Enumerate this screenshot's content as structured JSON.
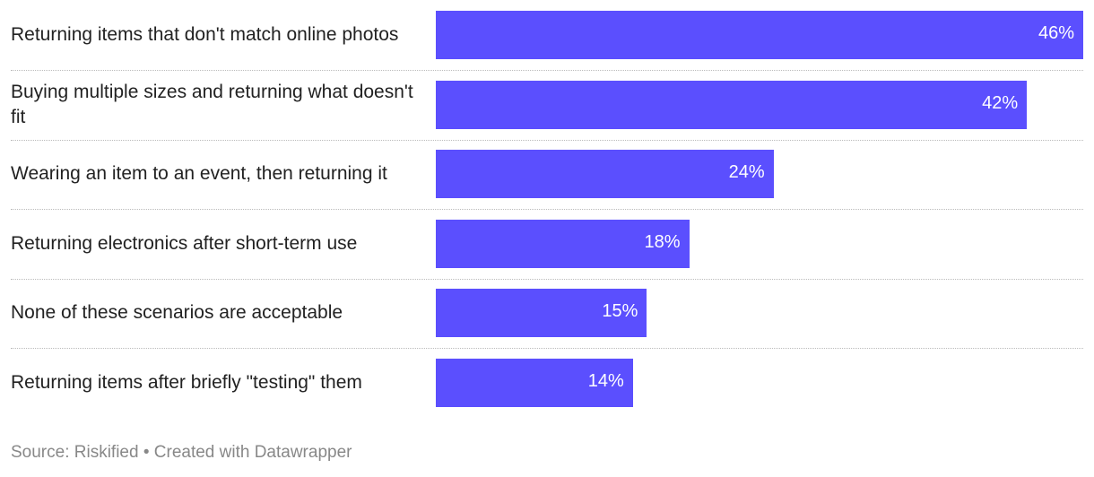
{
  "chart_data": {
    "type": "bar",
    "orientation": "horizontal",
    "categories": [
      "Returning items that don't match online photos",
      "Buying multiple sizes and returning what doesn't fit",
      "Wearing an item to an event, then returning it",
      "Returning electronics after short-term use",
      "None of these scenarios are acceptable",
      "Returning items after briefly \"testing\" them"
    ],
    "values": [
      46,
      42,
      24,
      18,
      15,
      14
    ],
    "value_labels": [
      "46%",
      "42%",
      "24%",
      "18%",
      "15%",
      "14%"
    ],
    "color": "#5b4ffe",
    "source": "Source: Riskified • Created with Datawrapper"
  }
}
